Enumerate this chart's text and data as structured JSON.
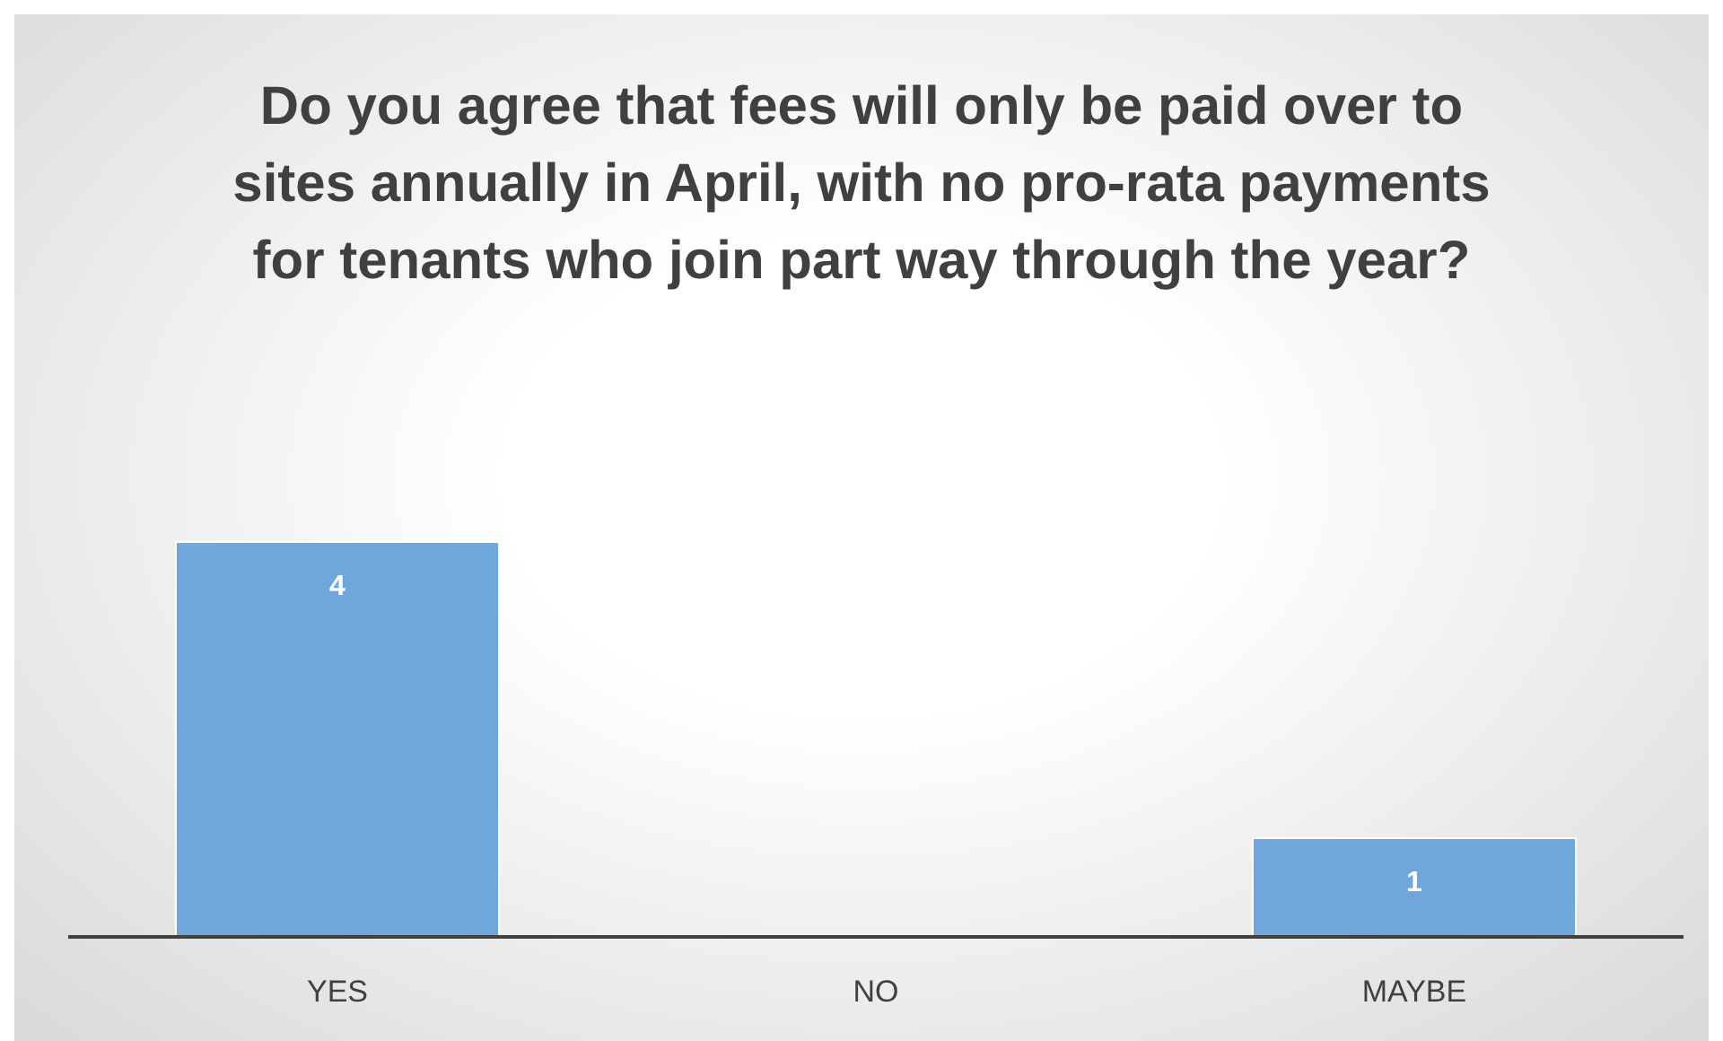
{
  "chart_data": {
    "type": "bar",
    "title": "Do you agree that fees will only be paid over to sites annually in April, with no pro-rata payments for tenants who join part way through the year?",
    "categories": [
      "YES",
      "NO",
      "MAYBE"
    ],
    "values": [
      4,
      0,
      1
    ],
    "value_labels": [
      "4",
      null,
      "1"
    ],
    "color": "#6fa6db",
    "grid": false
  }
}
